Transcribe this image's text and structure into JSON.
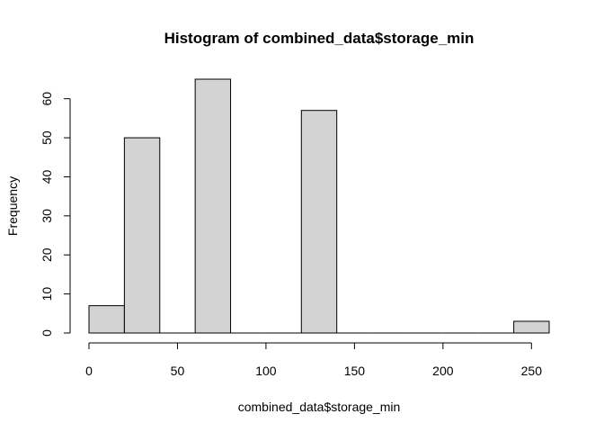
{
  "chart_data": {
    "type": "bar",
    "title": "Histogram of combined_data$storage_min",
    "xlabel": "combined_data$storage_min",
    "ylabel": "Frequency",
    "bins": [
      {
        "start": 0,
        "end": 20,
        "count": 7
      },
      {
        "start": 20,
        "end": 40,
        "count": 50
      },
      {
        "start": 40,
        "end": 60,
        "count": 0
      },
      {
        "start": 60,
        "end": 80,
        "count": 65
      },
      {
        "start": 80,
        "end": 100,
        "count": 0
      },
      {
        "start": 100,
        "end": 120,
        "count": 0
      },
      {
        "start": 120,
        "end": 140,
        "count": 57
      },
      {
        "start": 140,
        "end": 160,
        "count": 0
      },
      {
        "start": 160,
        "end": 180,
        "count": 0
      },
      {
        "start": 180,
        "end": 200,
        "count": 0
      },
      {
        "start": 200,
        "end": 220,
        "count": 0
      },
      {
        "start": 220,
        "end": 240,
        "count": 0
      },
      {
        "start": 240,
        "end": 260,
        "count": 3
      }
    ],
    "xticks": [
      0,
      50,
      100,
      150,
      200,
      250
    ],
    "yticks": [
      0,
      10,
      20,
      30,
      40,
      50,
      60
    ],
    "xlim": [
      0,
      260
    ],
    "ylim": [
      0,
      65
    ],
    "grid": false,
    "bar_color": "#d3d3d3",
    "edge_color": "#000000"
  }
}
